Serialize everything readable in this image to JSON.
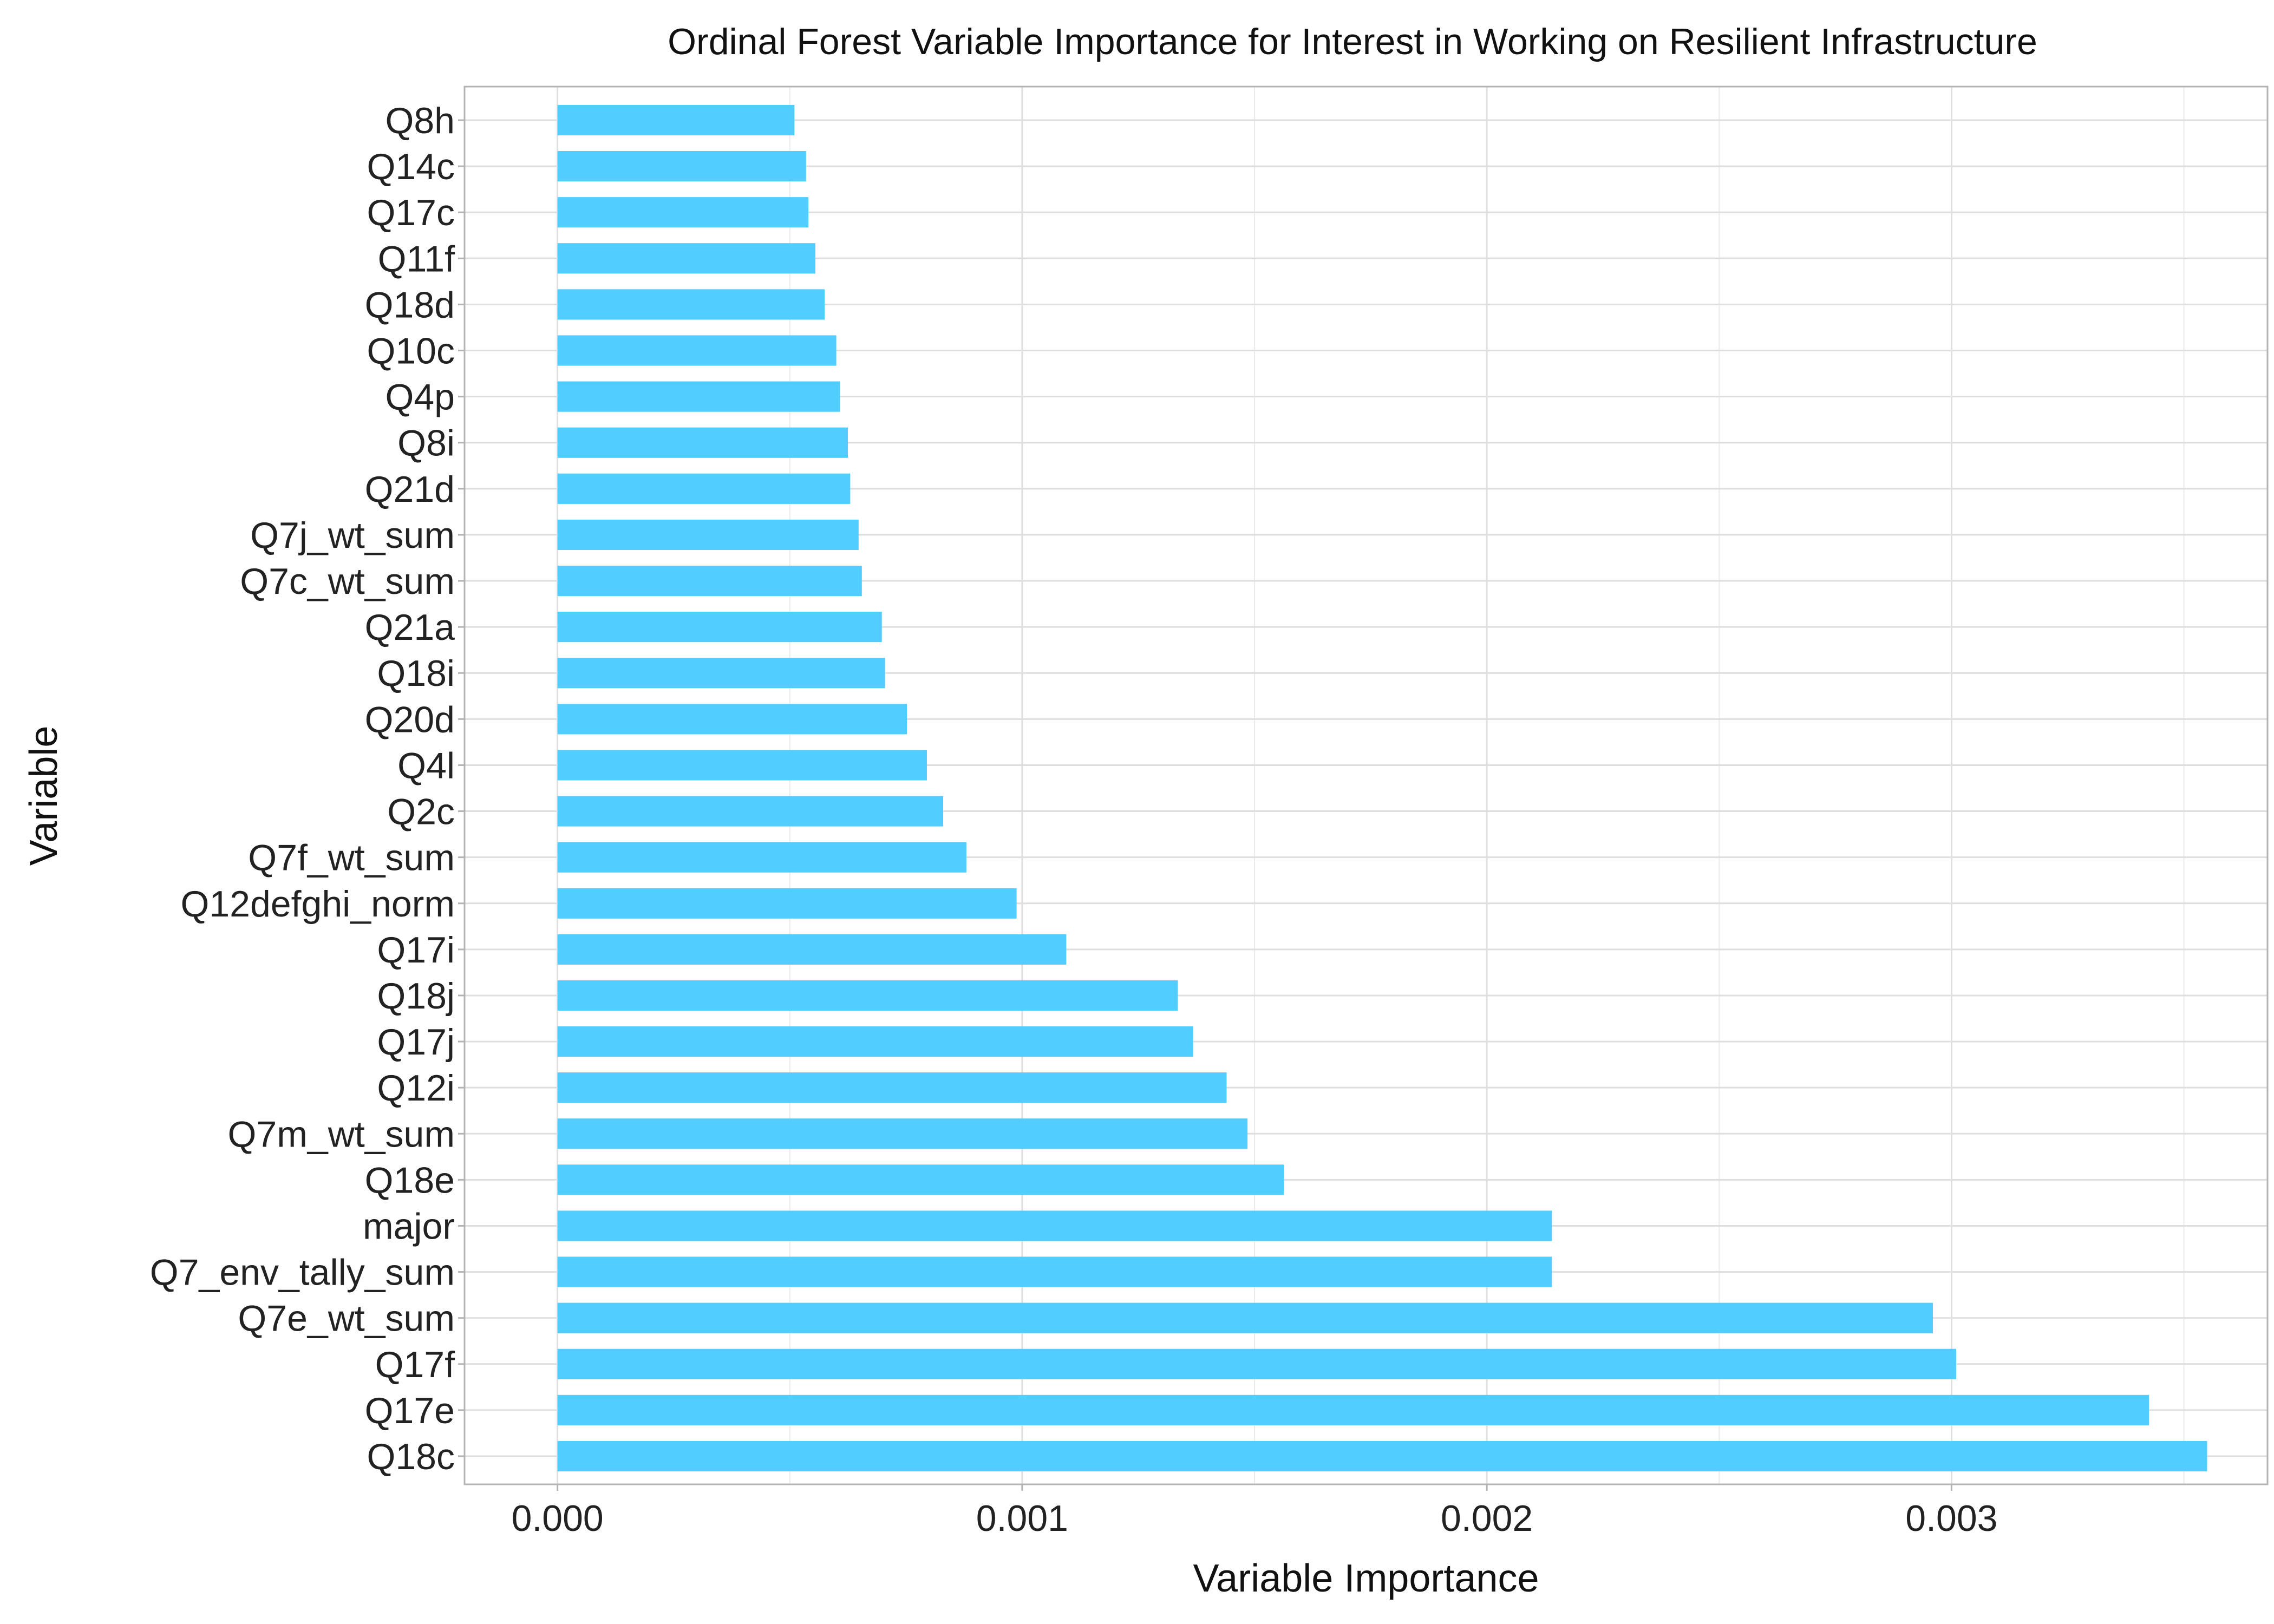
{
  "chart_data": {
    "type": "bar",
    "orientation": "horizontal",
    "title": "Ordinal Forest Variable Importance for Interest in Working on Resilient Infrastructure",
    "xlabel": "Variable Importance",
    "ylabel": "Variable",
    "xlim": [
      -0.0002,
      0.00368
    ],
    "x_ticks": [
      0,
      0.001,
      0.002,
      0.003
    ],
    "x_tick_labels": [
      "0.000",
      "0.001",
      "0.002",
      "0.003"
    ],
    "grid": true,
    "bar_color": "#52CDFF",
    "categories": [
      "Q8h",
      "Q14c",
      "Q17c",
      "Q11f",
      "Q18d",
      "Q10c",
      "Q4p",
      "Q8i",
      "Q21d",
      "Q7j_wt_sum",
      "Q7c_wt_sum",
      "Q21a",
      "Q18i",
      "Q20d",
      "Q4l",
      "Q2c",
      "Q7f_wt_sum",
      "Q12defghi_norm",
      "Q17i",
      "Q18j",
      "Q17j",
      "Q12i",
      "Q7m_wt_sum",
      "Q18e",
      "major",
      "Q7_env_tally_sum",
      "Q7e_wt_sum",
      "Q17f",
      "Q17e",
      "Q18c"
    ],
    "values": [
      0.00051,
      0.000535,
      0.00054,
      0.000555,
      0.000575,
      0.0006,
      0.000608,
      0.000625,
      0.00063,
      0.000648,
      0.000655,
      0.000698,
      0.000705,
      0.000752,
      0.000795,
      0.00083,
      0.00088,
      0.000988,
      0.001095,
      0.001335,
      0.001368,
      0.00144,
      0.001485,
      0.001563,
      0.00214,
      0.00214,
      0.00296,
      0.00301,
      0.003425,
      0.00355
    ]
  }
}
